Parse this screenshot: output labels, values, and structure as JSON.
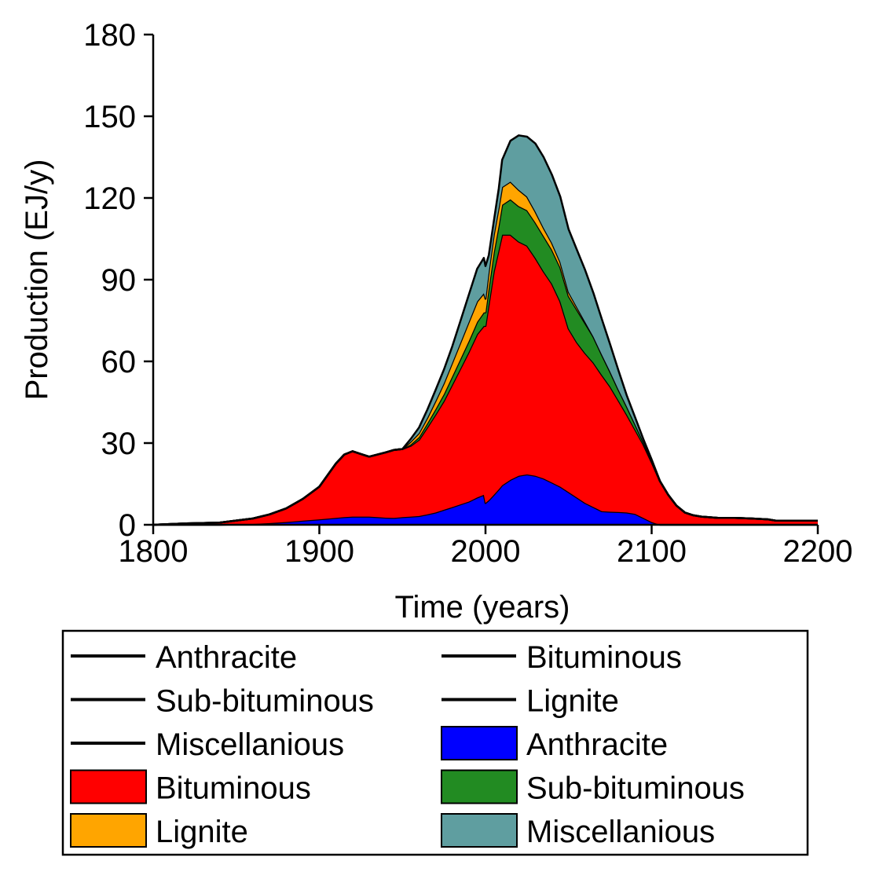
{
  "chart_data": {
    "type": "area",
    "stacked": true,
    "title": "",
    "xlabel": "Time (years)",
    "ylabel": "Production (EJ/y)",
    "xlim": [
      1800,
      2200
    ],
    "ylim": [
      0,
      180
    ],
    "xticks": [
      1800,
      1900,
      2000,
      2100,
      2200
    ],
    "yticks": [
      0,
      30,
      60,
      90,
      120,
      150,
      180
    ],
    "grid": false,
    "legend_position": "bottom",
    "x": [
      1800,
      1820,
      1840,
      1860,
      1870,
      1880,
      1890,
      1900,
      1910,
      1915,
      1920,
      1925,
      1930,
      1935,
      1940,
      1945,
      1950,
      1955,
      1960,
      1965,
      1970,
      1975,
      1980,
      1985,
      1990,
      1995,
      1999,
      2000,
      2002,
      2005,
      2008,
      2010,
      2015,
      2020,
      2025,
      2030,
      2035,
      2040,
      2045,
      2050,
      2055,
      2060,
      2065,
      2070,
      2075,
      2080,
      2085,
      2090,
      2095,
      2100,
      2105,
      2110,
      2115,
      2120,
      2125,
      2130,
      2140,
      2150,
      2160,
      2170,
      2175,
      2180,
      2190,
      2200
    ],
    "series": [
      {
        "name": "Anthracite",
        "color": "#0000ff",
        "values": [
          0,
          0,
          0,
          0.3,
          0.6,
          1,
          1.5,
          2,
          2.5,
          2.8,
          3,
          3,
          3,
          2.8,
          2.6,
          2.5,
          2.8,
          3,
          3.2,
          3.8,
          4.5,
          5.5,
          6.5,
          7.5,
          8.5,
          10,
          11,
          8,
          9,
          11,
          13,
          14.5,
          16.5,
          18,
          18.5,
          18,
          17,
          15.5,
          14,
          12,
          10,
          8,
          6.5,
          5,
          4.8,
          4.7,
          4.5,
          4,
          2.5,
          1,
          0,
          0,
          0,
          0,
          0,
          0,
          0,
          0,
          0,
          0,
          0,
          0,
          0,
          0
        ]
      },
      {
        "name": "Bituminous",
        "color": "#ff0000",
        "values": [
          0,
          0.5,
          0.8,
          2,
          3.2,
          5,
          8,
          12,
          20,
          23,
          24,
          23,
          22,
          23,
          24,
          25,
          25,
          26,
          28,
          32,
          36,
          40,
          45,
          50,
          55,
          60,
          62,
          65,
          72,
          82,
          88,
          92,
          90,
          86,
          84,
          80,
          76,
          73,
          68,
          60,
          57,
          55,
          53,
          50,
          46,
          41,
          36,
          31,
          27,
          22,
          16,
          11,
          7,
          4.5,
          3.5,
          3,
          2.5,
          2.5,
          2.3,
          2,
          1.5,
          1.5,
          1.5,
          1.5
        ]
      },
      {
        "name": "Sub-bituminous",
        "color": "#228b22",
        "values": [
          0,
          0,
          0,
          0,
          0,
          0,
          0,
          0,
          0,
          0,
          0,
          0,
          0,
          0,
          0,
          0,
          0,
          0.5,
          1,
          1.5,
          2,
          2.5,
          3,
          3.5,
          4,
          4.5,
          5,
          5,
          6,
          7,
          9,
          11,
          13,
          13,
          13,
          13,
          13,
          12.5,
          12.5,
          12,
          12,
          11,
          9.5,
          7.5,
          5.5,
          4,
          3,
          2,
          1,
          0.5,
          0,
          0,
          0,
          0,
          0,
          0,
          0,
          0,
          0,
          0,
          0,
          0,
          0,
          0
        ]
      },
      {
        "name": "Lignite",
        "color": "#ffa500",
        "values": [
          0,
          0,
          0,
          0,
          0,
          0,
          0,
          0,
          0,
          0,
          0,
          0,
          0,
          0,
          0,
          0,
          0,
          1,
          1.5,
          2,
          3,
          4,
          5,
          6,
          7,
          7.5,
          7,
          5,
          6,
          6.5,
          6.5,
          6.5,
          6.5,
          6,
          5,
          4,
          3,
          2.5,
          2,
          1.5,
          1,
          0.5,
          0,
          0,
          0,
          0,
          0,
          0,
          0,
          0,
          0,
          0,
          0,
          0,
          0,
          0,
          0,
          0,
          0,
          0,
          0,
          0,
          0,
          0
        ]
      },
      {
        "name": "Miscellanious",
        "color": "#5f9ea0",
        "values": [
          0,
          0,
          0,
          0,
          0,
          0,
          0,
          0,
          0,
          0,
          0,
          0,
          0,
          0,
          0,
          0,
          0,
          1,
          2,
          3,
          4,
          5,
          6,
          8,
          10,
          12,
          13,
          12,
          6,
          5,
          7,
          10,
          15,
          20,
          22,
          25,
          26,
          25,
          24,
          23,
          21,
          19,
          16,
          13,
          10,
          7,
          4,
          2.5,
          1,
          0.5,
          0,
          0,
          0,
          0,
          0,
          0,
          0,
          0,
          0,
          0,
          0,
          0,
          0,
          0
        ]
      }
    ],
    "legend": [
      {
        "label": "Anthracite",
        "kind": "line",
        "color": "#000000"
      },
      {
        "label": "Bituminous",
        "kind": "line",
        "color": "#000000"
      },
      {
        "label": "Sub-bituminous",
        "kind": "line",
        "color": "#000000"
      },
      {
        "label": "Lignite",
        "kind": "line",
        "color": "#000000"
      },
      {
        "label": "Miscellanious",
        "kind": "line",
        "color": "#000000"
      },
      {
        "label": "Anthracite",
        "kind": "fill",
        "color": "#0000ff"
      },
      {
        "label": "Bituminous",
        "kind": "fill",
        "color": "#ff0000"
      },
      {
        "label": "Sub-bituminous",
        "kind": "fill",
        "color": "#228b22"
      },
      {
        "label": "Lignite",
        "kind": "fill",
        "color": "#ffa500"
      },
      {
        "label": "Miscellanious",
        "kind": "fill",
        "color": "#5f9ea0"
      }
    ]
  }
}
